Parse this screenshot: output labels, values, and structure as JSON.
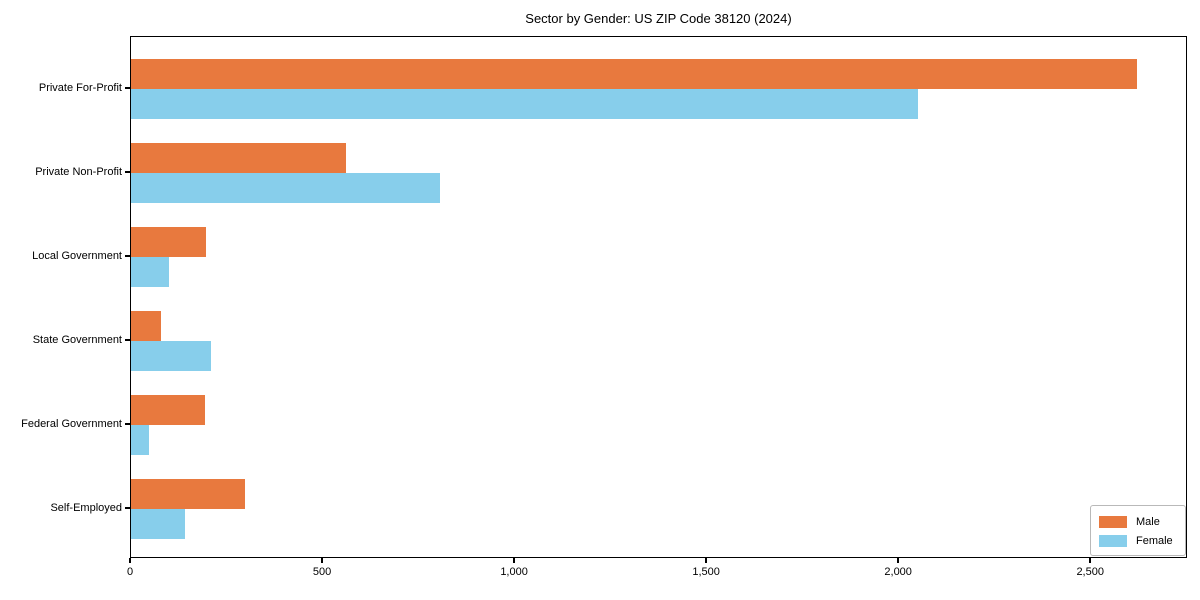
{
  "chart_data": {
    "type": "bar",
    "orientation": "horizontal",
    "title": "Sector by Gender: US ZIP Code 38120 (2024)",
    "categories": [
      "Private For-Profit",
      "Private Non-Profit",
      "Local Government",
      "State Government",
      "Federal Government",
      "Self-Employed"
    ],
    "series": [
      {
        "name": "Male",
        "color": "#e8793e",
        "values": [
          2620,
          560,
          195,
          78,
          192,
          297
        ]
      },
      {
        "name": "Female",
        "color": "#87ceeb",
        "values": [
          2050,
          805,
          100,
          207,
          46,
          140
        ]
      }
    ],
    "xlabel": "",
    "ylabel": "",
    "xlim": [
      0,
      2752
    ],
    "xticks": [
      0,
      500,
      1000,
      1500,
      2000,
      2500
    ],
    "xtick_labels": [
      "0",
      "500",
      "1,000",
      "1,500",
      "2,000",
      "2,500"
    ],
    "grid": false,
    "legend_position": "lower right",
    "legend_entries": [
      "Male",
      "Female"
    ]
  }
}
